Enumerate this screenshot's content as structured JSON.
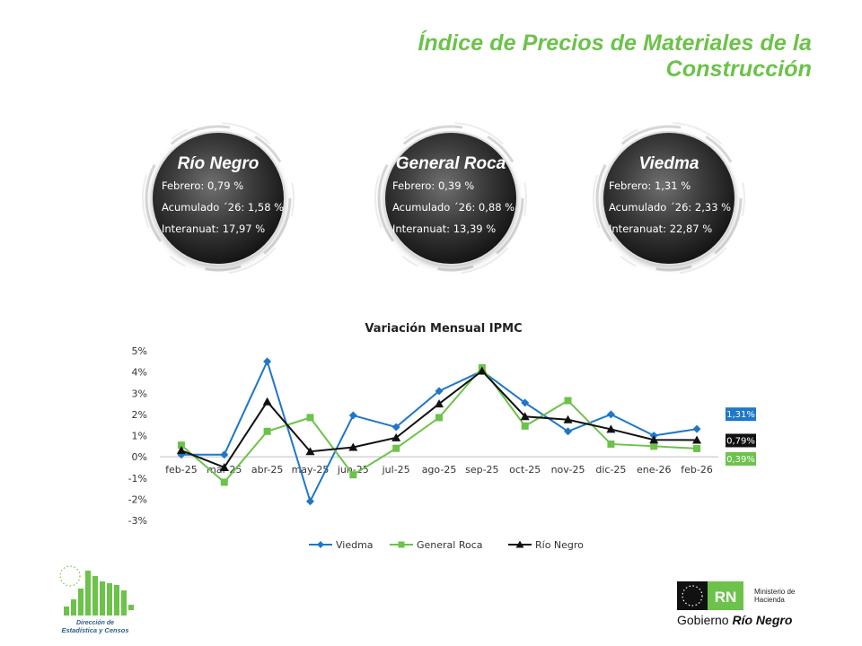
{
  "page_title": "Índice de Precios de Materiales de la Construcción",
  "cards": [
    {
      "name": "Río Negro",
      "lines": [
        "Febrero: 0,79 %",
        "Acumulado ´26: 1,58 %",
        "Interanuat: 17,97 %"
      ]
    },
    {
      "name": "General Roca",
      "lines": [
        "Febrero: 0,39 %",
        "Acumulado ´26: 0,88 %",
        "Interanuat: 13,39 %"
      ]
    },
    {
      "name": "Viedma",
      "lines": [
        "Febrero: 1,31 %",
        "Acumulado ´26: 2,33 %",
        "Interanuat: 22,87 %"
      ]
    }
  ],
  "chart_data": {
    "type": "line",
    "title": "Variación Mensual IPMC",
    "categories": [
      "feb-25",
      "mar-25",
      "abr-25",
      "may-25",
      "jun-25",
      "jul-25",
      "ago-25",
      "sep-25",
      "oct-25",
      "nov-25",
      "dic-25",
      "ene-26",
      "feb-26"
    ],
    "ylim": [
      -3,
      5
    ],
    "yticks": [
      "5%",
      "4%",
      "3%",
      "2%",
      "1%",
      "0%",
      "-1%",
      "-2%",
      "-3%"
    ],
    "grid": false,
    "legend_position": "bottom",
    "series": [
      {
        "name": "Viedma",
        "color": "#1f77c8",
        "marker": "diamond",
        "values": [
          0.1,
          0.1,
          4.5,
          -2.1,
          1.95,
          1.4,
          3.1,
          4.05,
          2.55,
          1.2,
          2.0,
          1.0,
          1.31
        ],
        "end_label": "1,31%"
      },
      {
        "name": "General Roca",
        "color": "#6cc24a",
        "marker": "square",
        "values": [
          0.55,
          -1.2,
          1.2,
          1.85,
          -0.85,
          0.4,
          1.85,
          4.2,
          1.45,
          2.65,
          0.6,
          0.5,
          0.39
        ],
        "end_label": "0,39%"
      },
      {
        "name": "Río Negro",
        "color": "#111111",
        "marker": "triangle",
        "values": [
          0.3,
          -0.5,
          2.6,
          0.25,
          0.45,
          0.9,
          2.5,
          4.05,
          1.9,
          1.75,
          1.3,
          0.8,
          0.79
        ],
        "end_label": "0,79%"
      }
    ]
  },
  "footer": {
    "left_logo_text": [
      "Dirección de",
      "Estadística y Censos"
    ],
    "right_logo_badge": "RN",
    "right_logo_ministry": [
      "Ministerio de",
      "Hacienda"
    ],
    "right_logo_gov_prefix": "Gobierno ",
    "right_logo_gov_name": "Río Negro"
  }
}
